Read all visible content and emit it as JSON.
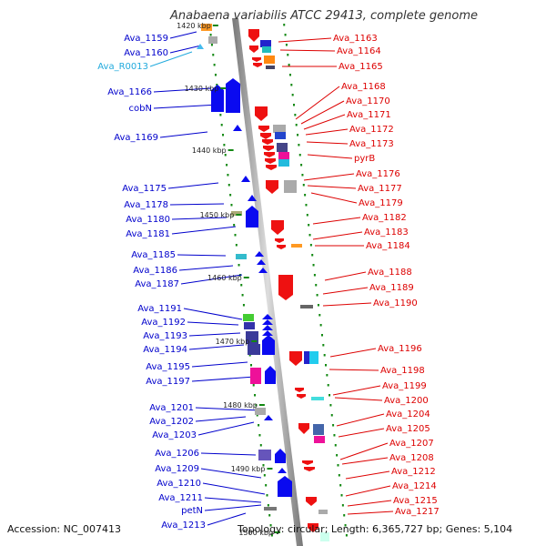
{
  "title": "Anabaena variabilis ATCC 29413, complete genome",
  "footer": {
    "accession": "Accession: NC_007413",
    "summary": "Topology: circular; Length: 6,365,727 bp; Genes: 5,104"
  },
  "colors": {
    "left_label": "#0000cc",
    "left_rna_label": "#22aadd",
    "right_label": "#dd0000",
    "tick": "#118811"
  },
  "kbp_ticks": [
    "1420 kbp",
    "1430 kbp",
    "1440 kbp",
    "1450 kbp",
    "1460 kbp",
    "1470 kbp",
    "1480 kbp",
    "1490 kbp",
    "1500 kbp"
  ],
  "left_genes": [
    "Ava_1159",
    "Ava_1160",
    "Ava_R0013",
    "Ava_1166",
    "cobN",
    "Ava_1169",
    "Ava_1175",
    "Ava_1178",
    "Ava_1180",
    "Ava_1181",
    "Ava_1185",
    "Ava_1186",
    "Ava_1187",
    "Ava_1191",
    "Ava_1192",
    "Ava_1193",
    "Ava_1194",
    "Ava_1195",
    "Ava_1197",
    "Ava_1201",
    "Ava_1202",
    "Ava_1203",
    "Ava_1206",
    "Ava_1209",
    "Ava_1210",
    "Ava_1211",
    "petN",
    "Ava_1213"
  ],
  "right_genes": [
    "Ava_1163",
    "Ava_1164",
    "Ava_1165",
    "Ava_1168",
    "Ava_1170",
    "Ava_1171",
    "Ava_1172",
    "Ava_1173",
    "pyrB",
    "Ava_1176",
    "Ava_1177",
    "Ava_1179",
    "Ava_1182",
    "Ava_1183",
    "Ava_1184",
    "Ava_1188",
    "Ava_1189",
    "Ava_1190",
    "Ava_1196",
    "Ava_1198",
    "Ava_1199",
    "Ava_1200",
    "Ava_1204",
    "Ava_1205",
    "Ava_1207",
    "Ava_1208",
    "Ava_1212",
    "Ava_1214",
    "Ava_1215",
    "Ava_1217"
  ]
}
